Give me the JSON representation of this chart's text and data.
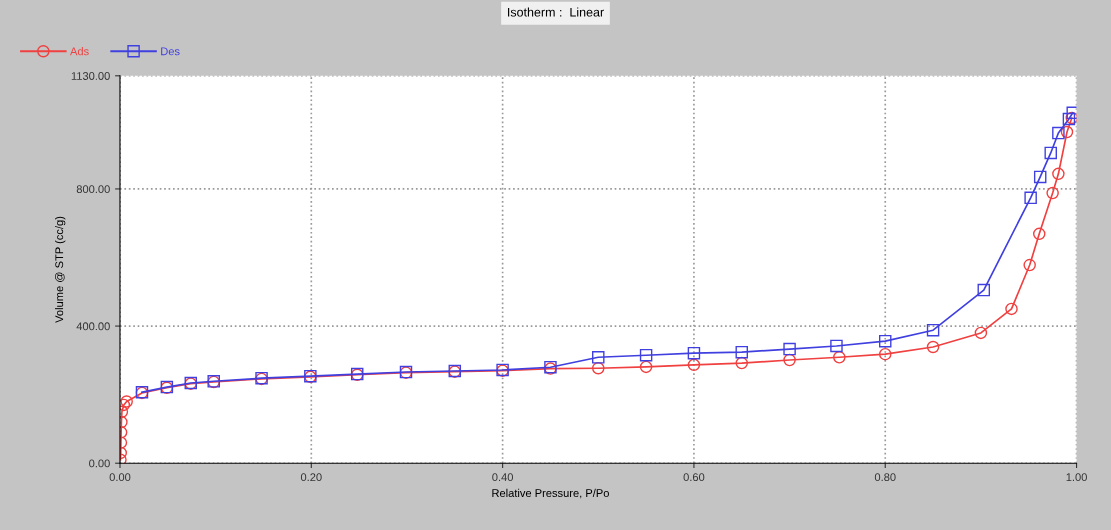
{
  "chart_data": {
    "type": "line",
    "title": "Isotherm :  Linear",
    "xlabel": "Relative Pressure, P/Po",
    "ylabel": "Volume @ STP (cc/g)",
    "xlim": [
      0,
      1
    ],
    "ylim": [
      0,
      1130
    ],
    "xticks": [
      {
        "value": 0,
        "label": "0.00"
      },
      {
        "value": 0.2,
        "label": "0.20"
      },
      {
        "value": 0.4,
        "label": "0.40"
      },
      {
        "value": 0.6,
        "label": "0.60"
      },
      {
        "value": 0.8,
        "label": "0.80"
      },
      {
        "value": 1.0,
        "label": "1.00"
      }
    ],
    "yticks": [
      {
        "value": 0,
        "label": "0.00"
      },
      {
        "value": 400,
        "label": "400.00"
      },
      {
        "value": 800,
        "label": "800.00"
      },
      {
        "value": 1130,
        "label": "1130.00"
      }
    ],
    "grid": true,
    "legend": "top left",
    "line_style": "solid",
    "series": [
      {
        "name": "Ads",
        "color": "#f04040",
        "marker": "circle",
        "x": [
          0.0005,
          0.0008,
          0.001,
          0.0012,
          0.0015,
          0.002,
          0.004,
          0.007,
          0.023,
          0.049,
          0.074,
          0.098,
          0.148,
          0.199,
          0.248,
          0.299,
          0.35,
          0.4,
          0.45,
          0.5,
          0.55,
          0.6,
          0.65,
          0.7,
          0.752,
          0.8,
          0.85,
          0.9,
          0.932,
          0.951,
          0.961,
          0.975,
          0.981,
          0.99,
          0.995
        ],
        "values": [
          10,
          30,
          60,
          90,
          120,
          150,
          170,
          180,
          205,
          220,
          232,
          237,
          246,
          252,
          258,
          264,
          267,
          270,
          276,
          277,
          281,
          287,
          292,
          301,
          309,
          318,
          339,
          380,
          450,
          578,
          669,
          788,
          844,
          966,
          1007
        ]
      },
      {
        "name": "Des",
        "color": "#4040e0",
        "marker": "square",
        "x": [
          0.996,
          0.992,
          0.981,
          0.973,
          0.962,
          0.952,
          0.903,
          0.85,
          0.8,
          0.749,
          0.7,
          0.65,
          0.6,
          0.55,
          0.5,
          0.45,
          0.4,
          0.35,
          0.299,
          0.248,
          0.199,
          0.148,
          0.098,
          0.074,
          0.049,
          0.023
        ],
        "values": [
          1022,
          1004,
          963,
          905,
          835,
          774,
          505,
          388,
          356,
          342,
          333,
          324,
          321,
          315,
          309,
          280,
          272,
          269,
          266,
          260,
          254,
          248,
          239,
          234,
          222,
          207
        ]
      }
    ]
  }
}
